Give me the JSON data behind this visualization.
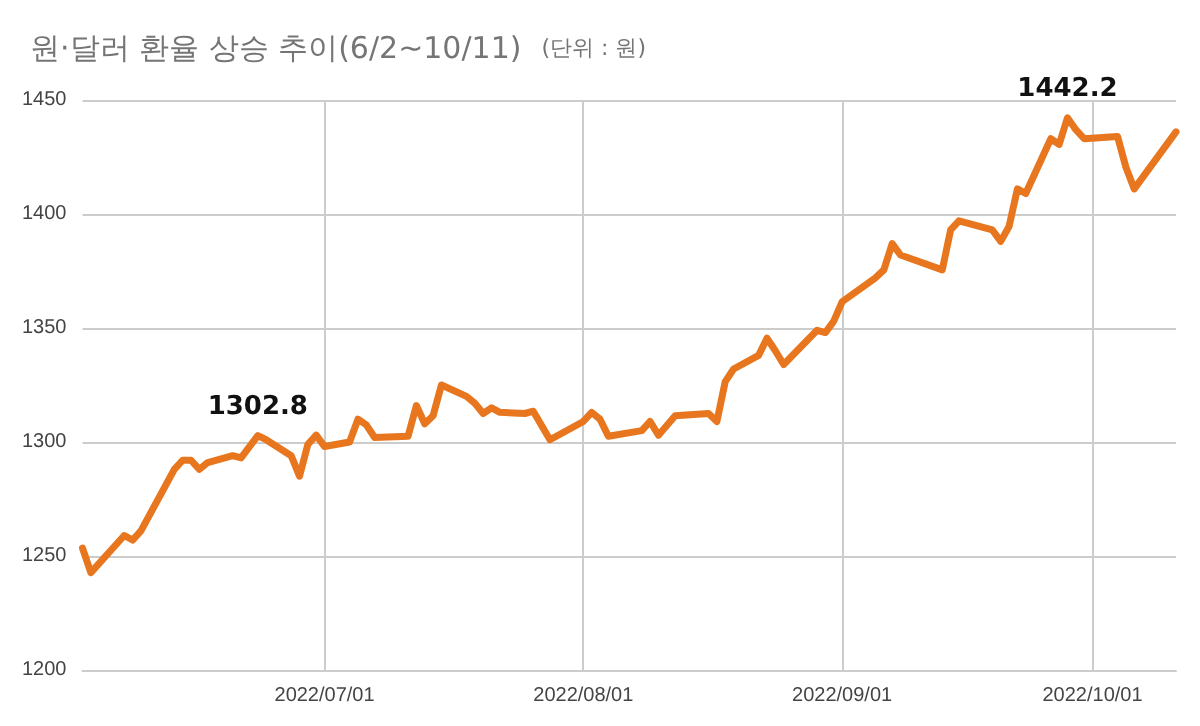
{
  "chart_data": {
    "type": "line",
    "title": "원·달러 환율 상승 추이(6/2~10/11)",
    "subtitle": "(단위 : 원)",
    "x": [
      "2022-06-02",
      "2022-06-03",
      "2022-06-07",
      "2022-06-08",
      "2022-06-09",
      "2022-06-13",
      "2022-06-14",
      "2022-06-15",
      "2022-06-16",
      "2022-06-17",
      "2022-06-20",
      "2022-06-21",
      "2022-06-23",
      "2022-06-24",
      "2022-06-27",
      "2022-06-28",
      "2022-06-29",
      "2022-06-30",
      "2022-07-01",
      "2022-07-04",
      "2022-07-05",
      "2022-07-06",
      "2022-07-07",
      "2022-07-11",
      "2022-07-12",
      "2022-07-13",
      "2022-07-14",
      "2022-07-15",
      "2022-07-18",
      "2022-07-19",
      "2022-07-20",
      "2022-07-21",
      "2022-07-22",
      "2022-07-25",
      "2022-07-26",
      "2022-07-28",
      "2022-08-01",
      "2022-08-02",
      "2022-08-03",
      "2022-08-04",
      "2022-08-08",
      "2022-08-09",
      "2022-08-10",
      "2022-08-12",
      "2022-08-16",
      "2022-08-17",
      "2022-08-18",
      "2022-08-19",
      "2022-08-22",
      "2022-08-23",
      "2022-08-24",
      "2022-08-25",
      "2022-08-29",
      "2022-08-30",
      "2022-08-31",
      "2022-09-01",
      "2022-09-05",
      "2022-09-06",
      "2022-09-07",
      "2022-09-08",
      "2022-09-13",
      "2022-09-14",
      "2022-09-15",
      "2022-09-19",
      "2022-09-20",
      "2022-09-21",
      "2022-09-22",
      "2022-09-23",
      "2022-09-26",
      "2022-09-27",
      "2022-09-28",
      "2022-09-29",
      "2022-09-30",
      "2022-10-04",
      "2022-10-05",
      "2022-10-06",
      "2022-10-11"
    ],
    "series": [
      {
        "color": "#e8761f",
        "values": [
          1253.5,
          1242.7,
          1259,
          1257,
          1261,
          1288,
          1292,
          1292,
          1288,
          1291,
          1294,
          1293,
          1302.8,
          1301,
          1294,
          1285,
          1299,
          1303,
          1298,
          1300,
          1310,
          1307.5,
          1302,
          1302.5,
          1316,
          1308,
          1311.5,
          1325,
          1320,
          1317,
          1312.5,
          1315,
          1313,
          1312.5,
          1313.5,
          1301,
          1309,
          1313,
          1310,
          1302.5,
          1305,
          1309,
          1303,
          1311.5,
          1312.5,
          1309,
          1326.5,
          1332,
          1338,
          1345.5,
          1340,
          1334,
          1349,
          1348,
          1353,
          1361.5,
          1372,
          1375.5,
          1387,
          1382,
          1375.5,
          1393,
          1397,
          1393,
          1388,
          1394.5,
          1411,
          1409,
          1433,
          1430.5,
          1442.2,
          1437,
          1433,
          1434,
          1420.5,
          1411,
          1436
        ]
      }
    ],
    "xlim": [
      "2022-06-02",
      "2022-10-11"
    ],
    "xticks": [
      {
        "value": "2022-07-01",
        "label": "2022/07/01"
      },
      {
        "value": "2022-08-01",
        "label": "2022/08/01"
      },
      {
        "value": "2022-09-01",
        "label": "2022/09/01"
      },
      {
        "value": "2022-10-01",
        "label": "2022/10/01"
      }
    ],
    "ylim": [
      1200,
      1450
    ],
    "yticks": [
      1200,
      1250,
      1300,
      1350,
      1400,
      1450
    ],
    "grid": true,
    "marker": "none",
    "line_style": "solid",
    "annotations": [
      {
        "text": "1302.8",
        "x": "2022-06-23",
        "y": 1302.8
      },
      {
        "text": "1442.2",
        "x": "2022-09-28",
        "y": 1442.2
      }
    ]
  }
}
